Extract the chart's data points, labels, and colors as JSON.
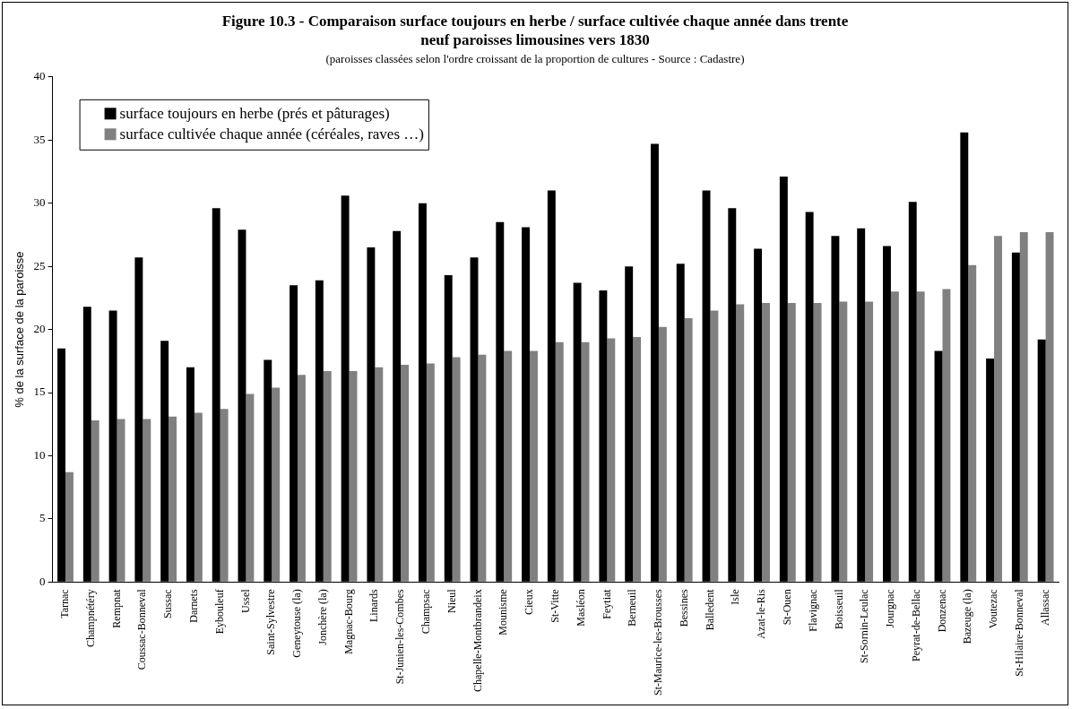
{
  "chart_data": {
    "type": "bar",
    "title": "Figure 10.3 - Comparaison surface toujours en herbe / surface cultivée chaque année dans trente neuf paroisses limousines vers 1830",
    "subtitle": "(paroisses classées selon l'ordre croissant de la proportion de cultures  - Source : Cadastre)",
    "ylabel": "% de la surface de la paroisse",
    "categories": [
      "Tarnac",
      "Champnétéry",
      "Rempnat",
      "Coussac-Bonneval",
      "Sussac",
      "Darnets",
      "Eybouleuf",
      "Ussel",
      "Saint-Sylvestre",
      "Geneytouse (la)",
      "Jonchère (la)",
      "Magnac-Bourg",
      "Linards",
      "St-Junien-les-Combes",
      "Champsac",
      "Nieul",
      "Chapelle-Montbrandeix",
      "Mounisme",
      "Cieux",
      "St-Vitte",
      "Masléon",
      "Feytiat",
      "Berneuil",
      "St-Maurice-les-Brousses",
      "Bessines",
      "Balledent",
      "Isle",
      "Azat-le-Ris",
      "St-Ouen",
      "Flavignac",
      "Boisseuil",
      "St-Sornin-Leulac",
      "Jourgnac",
      "Peyrat-de-Bellac",
      "Donzenac",
      "Bazeuge (la)",
      "Voutezac",
      "St-Hilaire-Bonneval",
      "Allassac"
    ],
    "series": [
      {
        "name": "surface toujours en herbe (prés et pâturages)",
        "color": "#000000",
        "values": [
          18.5,
          21.8,
          21.5,
          25.7,
          19.1,
          17.0,
          29.6,
          27.9,
          17.6,
          23.5,
          23.9,
          30.6,
          26.5,
          27.8,
          30.0,
          24.3,
          25.7,
          28.5,
          28.1,
          31.0,
          23.7,
          23.1,
          25.0,
          34.7,
          25.2,
          31.0,
          29.6,
          26.4,
          32.1,
          29.3,
          27.4,
          28.0,
          26.6,
          30.1,
          18.3,
          35.6,
          17.7,
          26.1,
          19.2
        ]
      },
      {
        "name": "surface cultivée chaque année (céréales, raves …)",
        "color": "#808080",
        "values": [
          8.7,
          12.8,
          12.9,
          12.9,
          13.1,
          13.4,
          13.7,
          14.9,
          15.4,
          16.4,
          16.7,
          16.7,
          17.0,
          17.2,
          17.3,
          17.8,
          18.0,
          18.3,
          18.3,
          19.0,
          19.0,
          19.3,
          19.4,
          20.2,
          20.9,
          21.5,
          22.0,
          22.1,
          22.1,
          22.1,
          22.2,
          22.2,
          23.0,
          23.0,
          23.2,
          25.1,
          27.4,
          27.7,
          27.7
        ]
      }
    ],
    "ylim": [
      0,
      40
    ],
    "yticks": [
      0,
      5,
      10,
      15,
      20,
      25,
      30,
      35,
      40
    ],
    "grid": false,
    "legend": "top left"
  }
}
